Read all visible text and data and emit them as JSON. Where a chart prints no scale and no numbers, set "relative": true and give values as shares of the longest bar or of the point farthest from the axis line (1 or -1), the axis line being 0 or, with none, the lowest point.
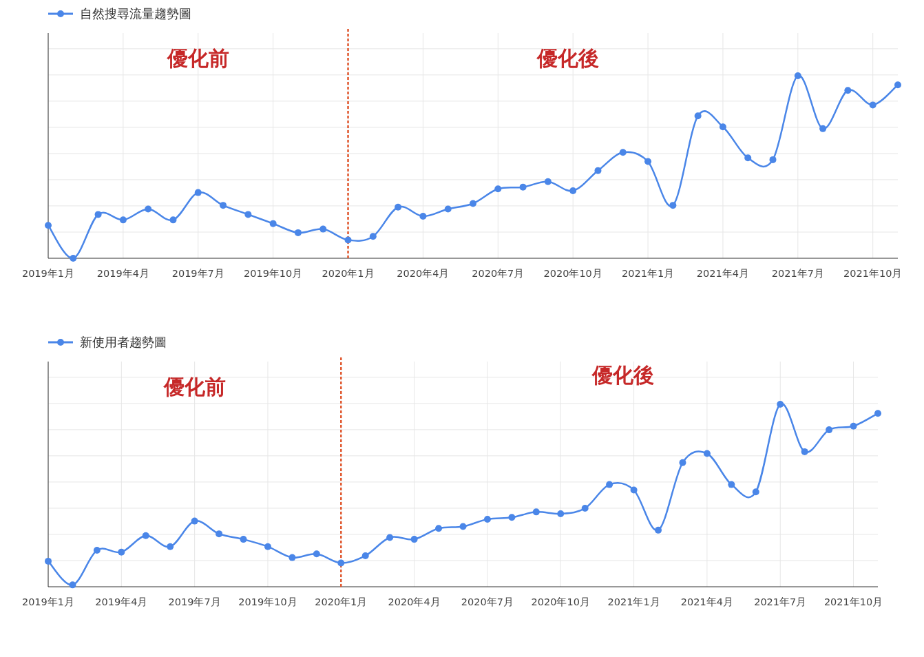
{
  "chart_data": [
    {
      "type": "line",
      "relative": true,
      "grid": true,
      "legend": "top left",
      "marker": "circle",
      "line_style": "solid",
      "x": [
        "2019-01",
        "2019-02",
        "2019-03",
        "2019-04",
        "2019-05",
        "2019-06",
        "2019-07",
        "2019-08",
        "2019-09",
        "2019-10",
        "2019-11",
        "2019-12",
        "2020-01",
        "2020-02",
        "2020-03",
        "2020-04",
        "2020-05",
        "2020-06",
        "2020-07",
        "2020-08",
        "2020-09",
        "2020-10",
        "2020-11",
        "2020-12",
        "2021-01",
        "2021-02",
        "2021-03",
        "2021-04",
        "2021-05",
        "2021-06",
        "2021-07",
        "2021-08",
        "2021-09",
        "2021-10",
        "2021-11"
      ],
      "xlim": [
        "2019-01",
        "2021-11"
      ],
      "xticks": [
        {
          "value": "2019-01",
          "label": "2019年1月"
        },
        {
          "value": "2019-04",
          "label": "2019年4月"
        },
        {
          "value": "2019-07",
          "label": "2019年7月"
        },
        {
          "value": "2019-10",
          "label": "2019年10月"
        },
        {
          "value": "2020-01",
          "label": "2020年1月"
        },
        {
          "value": "2020-04",
          "label": "2020年4月"
        },
        {
          "value": "2020-07",
          "label": "2020年7月"
        },
        {
          "value": "2020-10",
          "label": "2020年10月"
        },
        {
          "value": "2021-01",
          "label": "2021年1月"
        },
        {
          "value": "2021-04",
          "label": "2021年4月"
        },
        {
          "value": "2021-07",
          "label": "2021年7月"
        },
        {
          "value": "2021-10",
          "label": "2021年10月"
        }
      ],
      "series": [
        {
          "name": "自然搜尋流量趨勢圖",
          "color": "#4a86e8",
          "values": [
            0.18,
            0,
            0.24,
            0.21,
            0.27,
            0.21,
            0.36,
            0.29,
            0.24,
            0.19,
            0.14,
            0.16,
            0.1,
            0.12,
            0.28,
            0.23,
            0.27,
            0.3,
            0.38,
            0.39,
            0.42,
            0.37,
            0.48,
            0.58,
            0.53,
            0.29,
            0.78,
            0.72,
            0.55,
            0.54,
            1,
            0.71,
            0.92,
            0.84,
            0.95
          ]
        }
      ],
      "ref_lines": [
        {
          "axis": "x",
          "value": "2020-01",
          "color": "#e0552b",
          "line_style": "dashed"
        }
      ],
      "annotations": [
        "優化前",
        "優化後"
      ]
    },
    {
      "type": "line",
      "relative": true,
      "grid": true,
      "legend": "top left",
      "marker": "circle",
      "line_style": "solid",
      "x": [
        "2019-01",
        "2019-02",
        "2019-03",
        "2019-04",
        "2019-05",
        "2019-06",
        "2019-07",
        "2019-08",
        "2019-09",
        "2019-10",
        "2019-11",
        "2019-12",
        "2020-01",
        "2020-02",
        "2020-03",
        "2020-04",
        "2020-05",
        "2020-06",
        "2020-07",
        "2020-08",
        "2020-09",
        "2020-10",
        "2020-11",
        "2020-12",
        "2021-01",
        "2021-02",
        "2021-03",
        "2021-04",
        "2021-05",
        "2021-06",
        "2021-07",
        "2021-08",
        "2021-09",
        "2021-10",
        "2021-11"
      ],
      "xlim": [
        "2019-01",
        "2021-11"
      ],
      "xticks": [
        {
          "value": "2019-01",
          "label": "2019年1月"
        },
        {
          "value": "2019-04",
          "label": "2019年4月"
        },
        {
          "value": "2019-07",
          "label": "2019年7月"
        },
        {
          "value": "2019-10",
          "label": "2019年10月"
        },
        {
          "value": "2020-01",
          "label": "2020年1月"
        },
        {
          "value": "2020-04",
          "label": "2020年4月"
        },
        {
          "value": "2020-07",
          "label": "2020年7月"
        },
        {
          "value": "2020-10",
          "label": "2020年10月"
        },
        {
          "value": "2021-01",
          "label": "2021年1月"
        },
        {
          "value": "2021-04",
          "label": "2021年4月"
        },
        {
          "value": "2021-07",
          "label": "2021年7月"
        },
        {
          "value": "2021-10",
          "label": "2021年10月"
        }
      ],
      "series": [
        {
          "name": "新使用者趨勢圖",
          "color": "#4a86e8",
          "values": [
            0.14,
            0.01,
            0.2,
            0.19,
            0.28,
            0.22,
            0.36,
            0.29,
            0.26,
            0.22,
            0.16,
            0.18,
            0.13,
            0.17,
            0.27,
            0.26,
            0.32,
            0.33,
            0.37,
            0.38,
            0.41,
            0.4,
            0.43,
            0.56,
            0.53,
            0.31,
            0.68,
            0.73,
            0.56,
            0.52,
            1,
            0.74,
            0.86,
            0.88,
            0.95
          ]
        }
      ],
      "ref_lines": [
        {
          "axis": "x",
          "value": "2020-01",
          "color": "#e0552b",
          "line_style": "dashed"
        }
      ],
      "annotations": [
        "優化前",
        "優化後"
      ]
    }
  ]
}
